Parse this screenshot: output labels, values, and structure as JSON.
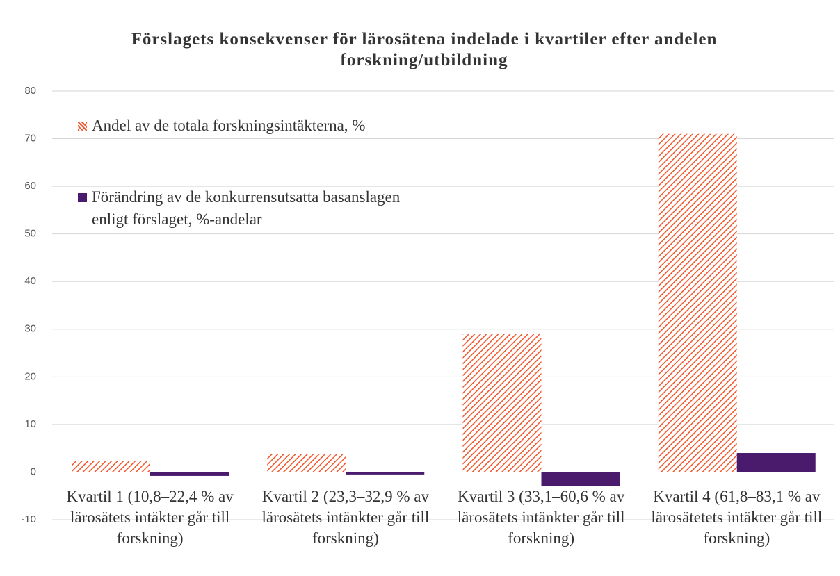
{
  "chart_data": {
    "type": "bar",
    "title": "Förslagets konsekvenser för lärosätena indelade i kvartiler efter andelen forskning/utbildning",
    "categories": [
      "Kvartil 1 (10,8–22,4 % av lärosätets intäkter går till forskning)",
      "Kvartil 2 (23,3–32,9 % av lärosätets intänkter går till forskning)",
      "Kvartil 3 (33,1–60,6 % av lärosätets intänkter går till forskning)",
      "Kvartil 4 (61,8–83,1 % av lärosätetets intäkter går till forskning)"
    ],
    "series": [
      {
        "name": "Andel av de totala forskningsintäkterna, %",
        "color": "#f0562a",
        "pattern": "hatch",
        "values": [
          2.3,
          3.8,
          29,
          71
        ]
      },
      {
        "name": "Förändring av de konkurrensutsatta basanslagen enligt förslaget, %-andelar",
        "color": "#4a1a6c",
        "values": [
          -0.8,
          -0.5,
          -3,
          4
        ]
      }
    ],
    "ylim": [
      -10,
      80
    ],
    "yticks": [
      -10,
      0,
      10,
      20,
      30,
      40,
      50,
      60,
      70,
      80
    ],
    "grid": true,
    "legend": "top-left"
  }
}
